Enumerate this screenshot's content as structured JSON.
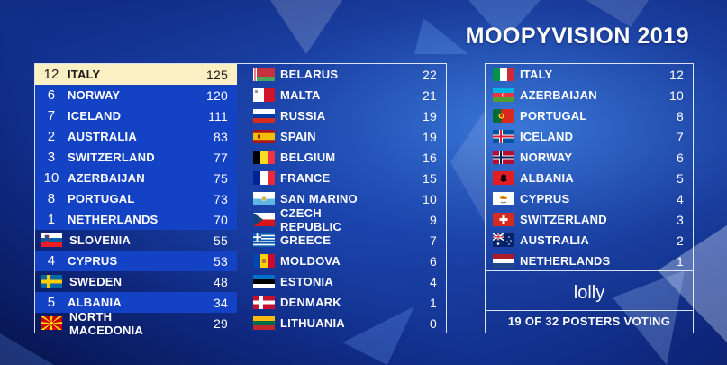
{
  "title": "MOOPYVISION 2019",
  "scoreboard_left": [
    {
      "pts": "12",
      "country": "ITALY",
      "score": "125",
      "flag": "italy-flag-icon",
      "highlight": "first"
    },
    {
      "pts": "6",
      "country": "NORWAY",
      "score": "120",
      "flag": "norway-flag-icon",
      "highlight": "yes"
    },
    {
      "pts": "7",
      "country": "ICELAND",
      "score": "111",
      "flag": "iceland-flag-icon",
      "highlight": "yes"
    },
    {
      "pts": "2",
      "country": "AUSTRALIA",
      "score": "83",
      "flag": "australia-flag-icon",
      "highlight": "yes"
    },
    {
      "pts": "3",
      "country": "SWITZERLAND",
      "score": "77",
      "flag": "switzerland-flag-icon",
      "highlight": "yes"
    },
    {
      "pts": "10",
      "country": "AZERBAIJAN",
      "score": "75",
      "flag": "azerbaijan-flag-icon",
      "highlight": "yes"
    },
    {
      "pts": "8",
      "country": "PORTUGAL",
      "score": "73",
      "flag": "portugal-flag-icon",
      "highlight": "yes"
    },
    {
      "pts": "1",
      "country": "NETHERLANDS",
      "score": "70",
      "flag": "netherlands-flag-icon",
      "highlight": "yes"
    },
    {
      "pts": "",
      "country": "SLOVENIA",
      "score": "55",
      "flag": "slovenia-flag-icon",
      "highlight": "no"
    },
    {
      "pts": "4",
      "country": "CYPRUS",
      "score": "53",
      "flag": "cyprus-flag-icon",
      "highlight": "yes"
    },
    {
      "pts": "",
      "country": "SWEDEN",
      "score": "48",
      "flag": "sweden-flag-icon",
      "highlight": "no"
    },
    {
      "pts": "5",
      "country": "ALBANIA",
      "score": "34",
      "flag": "albania-flag-icon",
      "highlight": "yes"
    },
    {
      "pts": "",
      "country": "NORTH MACEDONIA",
      "score": "29",
      "flag": "north-macedonia-flag-icon",
      "highlight": "no"
    }
  ],
  "scoreboard_middle": [
    {
      "country": "BELARUS",
      "score": "22",
      "flag": "belarus-flag-icon"
    },
    {
      "country": "MALTA",
      "score": "21",
      "flag": "malta-flag-icon"
    },
    {
      "country": "RUSSIA",
      "score": "19",
      "flag": "russia-flag-icon"
    },
    {
      "country": "SPAIN",
      "score": "19",
      "flag": "spain-flag-icon"
    },
    {
      "country": "BELGIUM",
      "score": "16",
      "flag": "belgium-flag-icon"
    },
    {
      "country": "FRANCE",
      "score": "15",
      "flag": "france-flag-icon"
    },
    {
      "country": "SAN MARINO",
      "score": "10",
      "flag": "san-marino-flag-icon"
    },
    {
      "country": "CZECH REPUBLIC",
      "score": "9",
      "flag": "czech-republic-flag-icon"
    },
    {
      "country": "GREECE",
      "score": "7",
      "flag": "greece-flag-icon"
    },
    {
      "country": "MOLDOVA",
      "score": "6",
      "flag": "moldova-flag-icon"
    },
    {
      "country": "ESTONIA",
      "score": "4",
      "flag": "estonia-flag-icon"
    },
    {
      "country": "DENMARK",
      "score": "1",
      "flag": "denmark-flag-icon"
    },
    {
      "country": "LITHUANIA",
      "score": "0",
      "flag": "lithuania-flag-icon"
    }
  ],
  "voter_panel": {
    "points_given": [
      {
        "country": "ITALY",
        "score": "12",
        "flag": "italy-flag-icon"
      },
      {
        "country": "AZERBAIJAN",
        "score": "10",
        "flag": "azerbaijan-flag-icon"
      },
      {
        "country": "PORTUGAL",
        "score": "8",
        "flag": "portugal-flag-icon"
      },
      {
        "country": "ICELAND",
        "score": "7",
        "flag": "iceland-flag-icon"
      },
      {
        "country": "NORWAY",
        "score": "6",
        "flag": "norway-flag-icon"
      },
      {
        "country": "ALBANIA",
        "score": "5",
        "flag": "albania-flag-icon"
      },
      {
        "country": "CYPRUS",
        "score": "4",
        "flag": "cyprus-flag-icon"
      },
      {
        "country": "SWITZERLAND",
        "score": "3",
        "flag": "switzerland-flag-icon"
      },
      {
        "country": "AUSTRALIA",
        "score": "2",
        "flag": "australia-flag-icon"
      },
      {
        "country": "NETHERLANDS",
        "score": "1",
        "flag": "netherlands-flag-icon"
      }
    ],
    "voter_name": "lolly",
    "voting_status": "19 OF 32 POSTERS VOTING"
  },
  "colors": {
    "highlight_first": "#fbefc4",
    "highlight_row": "#1442c4",
    "background": "#0b1f6e"
  }
}
